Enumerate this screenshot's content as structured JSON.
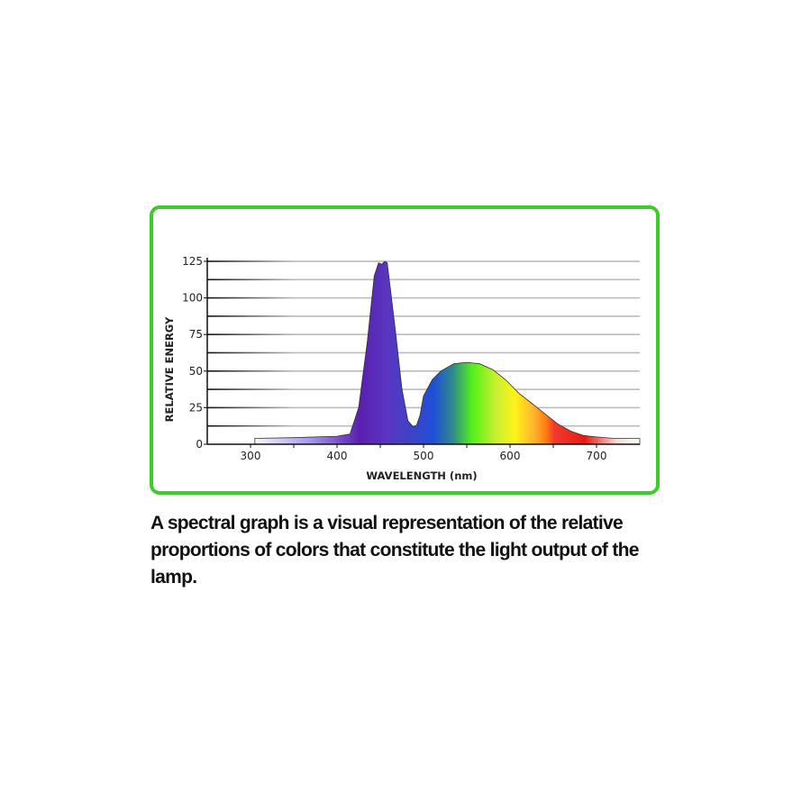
{
  "chart_data": {
    "type": "area",
    "title": "",
    "xlabel": "WAVELENGTH (nm)",
    "ylabel": "RELATIVE ENERGY",
    "xlim": [
      250,
      750
    ],
    "ylim": [
      0,
      125
    ],
    "xticks": [
      300,
      400,
      500,
      600,
      700
    ],
    "yticks": [
      0,
      25,
      50,
      75,
      100,
      125
    ],
    "grid": true,
    "fill": "visible spectrum gradient",
    "x": [
      305,
      350,
      400,
      415,
      425,
      435,
      443,
      448,
      452,
      455,
      458,
      462,
      468,
      475,
      482,
      488,
      492,
      496,
      500,
      510,
      520,
      535,
      550,
      565,
      580,
      595,
      610,
      625,
      640,
      655,
      670,
      685,
      700,
      720,
      750
    ],
    "y": [
      4,
      4.5,
      5.5,
      7,
      25,
      70,
      115,
      124,
      123,
      125,
      124,
      105,
      75,
      38,
      16,
      12,
      13,
      20,
      33,
      44,
      50,
      55,
      56,
      55,
      51,
      44,
      35,
      28,
      21,
      14,
      9,
      6,
      5,
      4,
      4
    ]
  },
  "caption": "A spectral graph is a visual representation of the relative proportions of colors that constitute the light output of the lamp.",
  "colors": {
    "frame": "#3fcb2b"
  }
}
